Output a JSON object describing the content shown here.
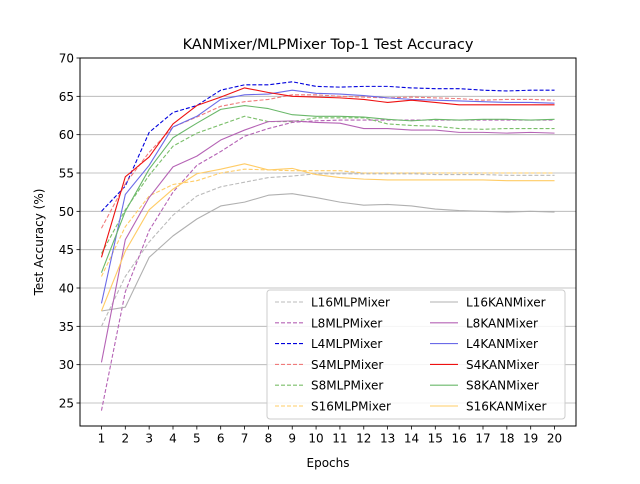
{
  "chart_data": {
    "type": "line",
    "title": "KANMixer/MLPMixer Top-1 Test Accuracy",
    "xlabel": "Epochs",
    "ylabel": "Test Accuracy (%)",
    "x": [
      1,
      2,
      3,
      4,
      5,
      6,
      7,
      8,
      9,
      10,
      11,
      12,
      13,
      14,
      15,
      16,
      17,
      18,
      19,
      20
    ],
    "xticks": [
      "1",
      "2",
      "3",
      "4",
      "5",
      "6",
      "7",
      "8",
      "9",
      "10",
      "11",
      "12",
      "13",
      "14",
      "15",
      "16",
      "17",
      "18",
      "19",
      "20"
    ],
    "yticks": [
      25,
      30,
      35,
      40,
      45,
      50,
      55,
      60,
      65,
      70
    ],
    "ylim": [
      22,
      70
    ],
    "xlim": [
      0.1,
      20.9
    ],
    "grid": "horizontal",
    "legend": "lower-right, 2 columns",
    "series": [
      {
        "name": "L16MLPMixer",
        "color": "#bbbbbb",
        "dash": true,
        "values": [
          35.0,
          41.5,
          46.0,
          49.5,
          52.0,
          53.2,
          53.8,
          54.4,
          54.6,
          54.9,
          54.9,
          54.9,
          54.9,
          54.9,
          54.8,
          54.8,
          54.8,
          54.7,
          54.7,
          54.7
        ]
      },
      {
        "name": "L8MLPMixer",
        "color": "#b563b5",
        "dash": true,
        "values": [
          24.0,
          39.5,
          47.5,
          52.5,
          56.0,
          57.8,
          59.8,
          60.8,
          61.6,
          61.8,
          61.9,
          61.9,
          61.9,
          61.9,
          61.9,
          61.9,
          61.9,
          61.9,
          61.9,
          61.9
        ]
      },
      {
        "name": "L4MLPMixer",
        "color": "#0000dd",
        "dash": true,
        "values": [
          50.0,
          53.3,
          60.3,
          62.9,
          63.8,
          65.8,
          66.5,
          66.5,
          66.9,
          66.3,
          66.2,
          66.3,
          66.3,
          66.1,
          66.0,
          66.0,
          65.8,
          65.7,
          65.8,
          65.8
        ]
      },
      {
        "name": "S4MLPMixer",
        "color": "#f07b7b",
        "dash": true,
        "values": [
          47.8,
          53.6,
          57.7,
          61.0,
          62.3,
          63.7,
          64.3,
          64.6,
          65.2,
          65.2,
          65.0,
          64.9,
          64.8,
          64.9,
          64.8,
          64.7,
          64.5,
          64.6,
          64.6,
          64.5
        ]
      },
      {
        "name": "S8MLPMixer",
        "color": "#7bbf6a",
        "dash": true,
        "values": [
          44.5,
          50.2,
          54.7,
          58.5,
          60.2,
          61.3,
          62.4,
          61.7,
          61.7,
          62.2,
          62.2,
          62.2,
          61.4,
          61.2,
          61.1,
          60.8,
          60.7,
          60.8,
          60.8,
          60.8
        ]
      },
      {
        "name": "S16MLPMixer",
        "color": "#ffcc66",
        "dash": true,
        "values": [
          41.5,
          48.0,
          52.0,
          53.5,
          54.0,
          55.0,
          55.5,
          55.4,
          55.3,
          55.3,
          55.3,
          55.0,
          55.0,
          55.0,
          55.0,
          55.0,
          55.0,
          55.0,
          55.0,
          55.0
        ]
      },
      {
        "name": "L16KANMixer",
        "color": "#b0b0b0",
        "dash": false,
        "values": [
          37.0,
          37.5,
          44.0,
          46.8,
          49.0,
          50.7,
          51.2,
          52.1,
          52.3,
          51.8,
          51.2,
          50.8,
          50.9,
          50.7,
          50.3,
          50.1,
          50.0,
          49.9,
          50.0,
          49.9
        ]
      },
      {
        "name": "L8KANMixer",
        "color": "#b563b5",
        "dash": false,
        "values": [
          30.3,
          46.3,
          51.8,
          55.8,
          57.2,
          59.3,
          60.6,
          61.7,
          61.8,
          61.6,
          61.5,
          60.8,
          60.8,
          60.6,
          60.6,
          60.3,
          60.3,
          60.2,
          60.3,
          60.2
        ]
      },
      {
        "name": "L4KANMixer",
        "color": "#6b6be8",
        "dash": false,
        "values": [
          38.0,
          52.2,
          56.0,
          61.0,
          62.4,
          64.6,
          65.2,
          65.3,
          65.8,
          65.4,
          65.3,
          65.1,
          64.8,
          64.6,
          64.5,
          64.4,
          64.3,
          64.2,
          64.2,
          64.1
        ]
      },
      {
        "name": "S4KANMixer",
        "color": "#ee1111",
        "dash": false,
        "values": [
          44.0,
          54.5,
          57.1,
          61.4,
          63.8,
          64.9,
          66.1,
          65.5,
          65.0,
          64.9,
          64.8,
          64.6,
          64.2,
          64.5,
          64.2,
          63.9,
          63.9,
          63.9,
          63.9,
          63.9
        ]
      },
      {
        "name": "S8KANMixer",
        "color": "#6ab86a",
        "dash": false,
        "values": [
          42.0,
          50.0,
          55.5,
          59.6,
          61.5,
          63.3,
          63.8,
          63.4,
          62.6,
          62.4,
          62.4,
          62.3,
          62.0,
          61.8,
          62.0,
          61.9,
          62.0,
          62.0,
          61.9,
          62.0
        ]
      },
      {
        "name": "S16KANMixer",
        "color": "#ffcc66",
        "dash": false,
        "values": [
          37.0,
          44.8,
          50.2,
          52.9,
          54.9,
          55.5,
          56.2,
          55.4,
          55.6,
          54.8,
          54.4,
          54.2,
          54.1,
          54.1,
          54.1,
          54.1,
          54.1,
          54.0,
          54.0,
          54.0
        ]
      }
    ]
  }
}
